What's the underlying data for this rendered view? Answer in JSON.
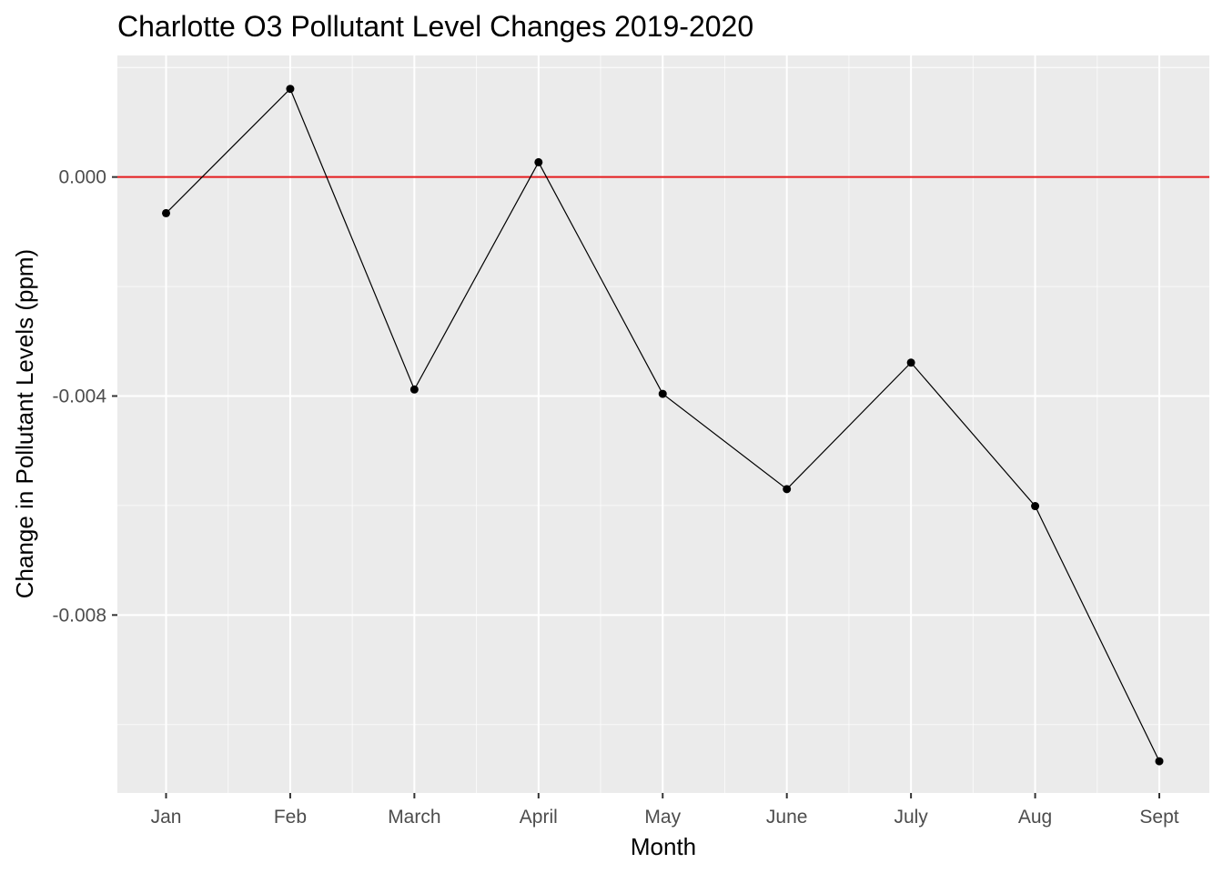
{
  "chart_data": {
    "type": "line",
    "title": "Charlotte O3 Pollutant Level Changes 2019-2020",
    "xlabel": "Month",
    "ylabel": "Change in Pollutant Levels (ppm)",
    "categories": [
      "Jan",
      "Feb",
      "March",
      "April",
      "May",
      "June",
      "July",
      "Aug",
      "Sept"
    ],
    "series": [
      {
        "values": [
          -0.00066,
          0.00161,
          -0.00388,
          0.00027,
          -0.00396,
          -0.0057,
          -0.00339,
          -0.00601,
          -0.01067
        ]
      }
    ],
    "reference_line": {
      "y": 0,
      "color": "#e31a1c"
    },
    "ylim": [
      -0.01125,
      0.00222
    ],
    "y_ticks": [
      0,
      -0.004,
      -0.008
    ],
    "y_tick_labels": [
      "0.000",
      "-0.004",
      "-0.008"
    ],
    "grid": true,
    "colors": {
      "panel": "#ebebeb",
      "grid": "#ffffff",
      "line": "#000000",
      "point": "#000000"
    }
  }
}
